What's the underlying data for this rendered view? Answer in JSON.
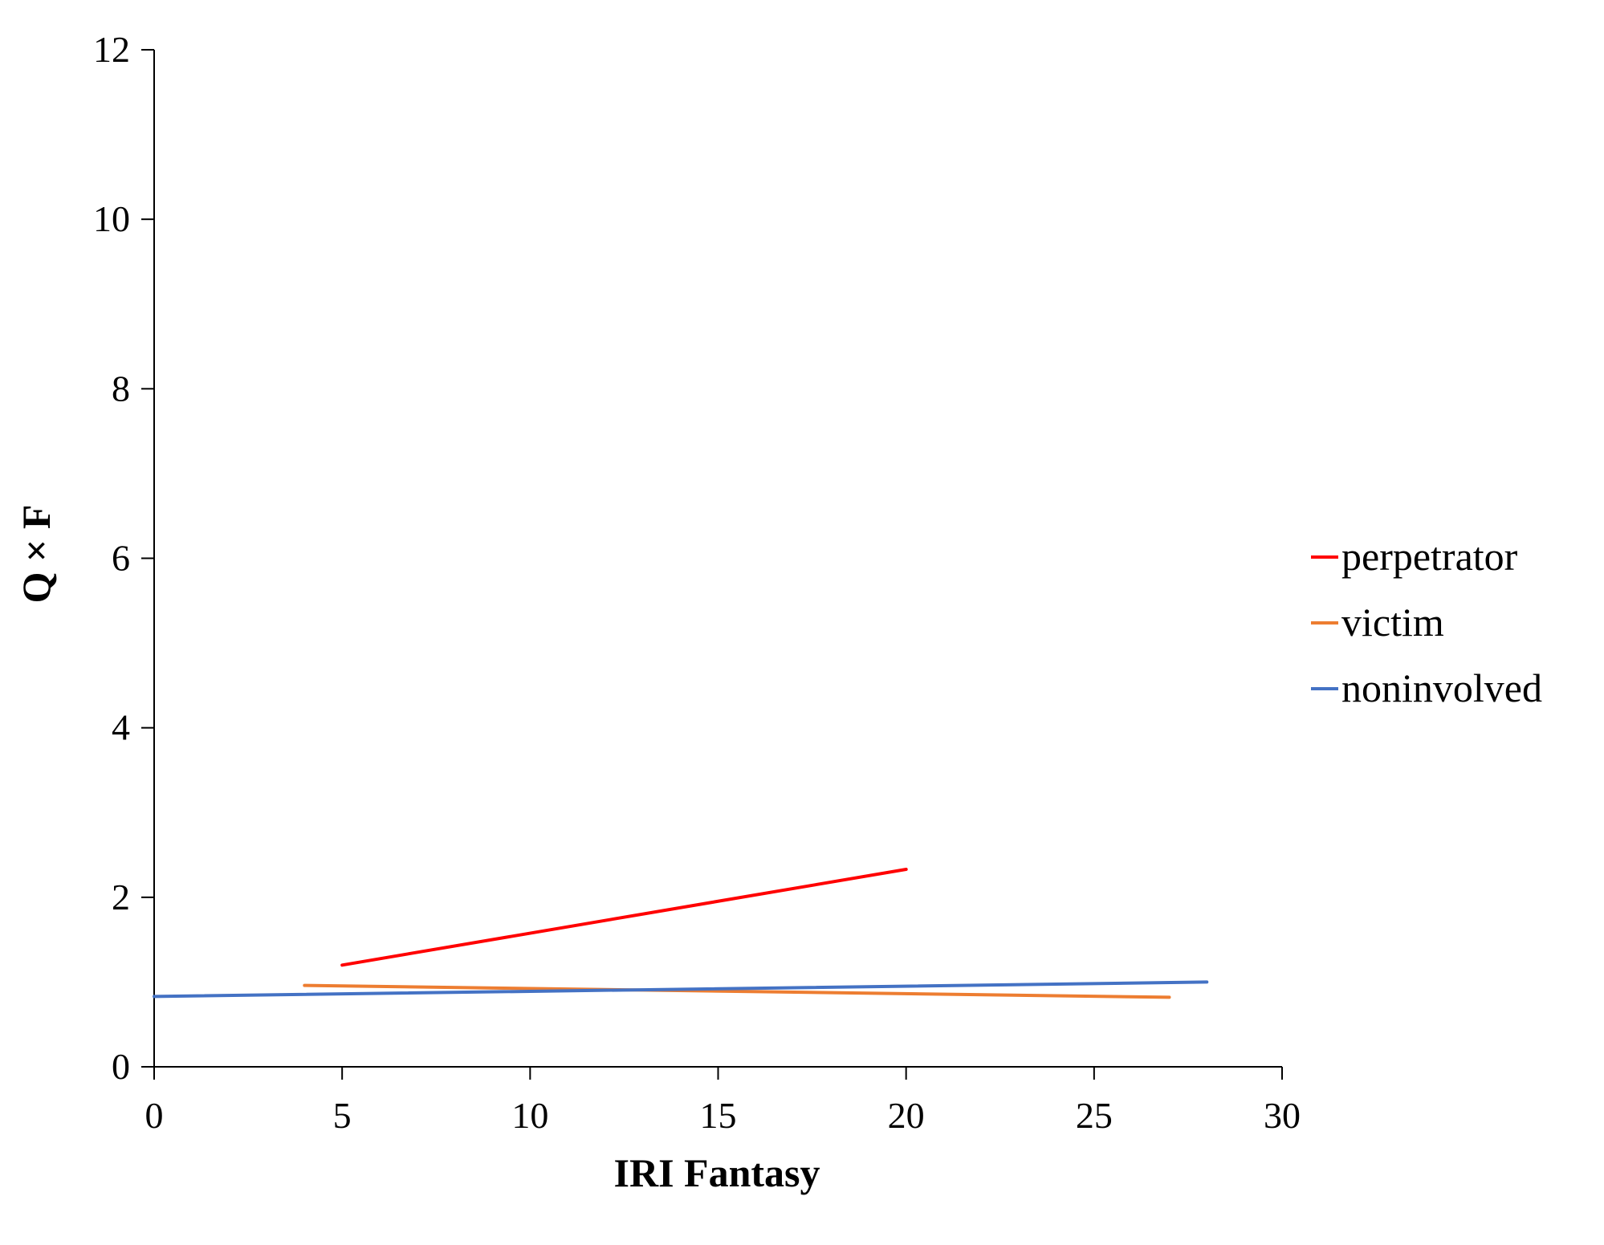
{
  "chart_data": {
    "type": "line",
    "title": "",
    "xlabel": "IRI Fantasy",
    "ylabel": "Q × F",
    "xlim": [
      0,
      30
    ],
    "ylim": [
      0,
      12
    ],
    "x_ticks": [
      0,
      5,
      10,
      15,
      20,
      25,
      30
    ],
    "y_ticks": [
      0,
      2,
      4,
      6,
      8,
      10,
      12
    ],
    "grid": false,
    "legend_position": "right",
    "series": [
      {
        "name": "perpetrator",
        "color": "#ff0000",
        "x": [
          5,
          20
        ],
        "y": [
          1.2,
          2.33
        ]
      },
      {
        "name": "victim",
        "color": "#ed7d31",
        "x": [
          4,
          27
        ],
        "y": [
          0.96,
          0.82
        ]
      },
      {
        "name": "noninvolved",
        "color": "#4472c4",
        "x": [
          0,
          28
        ],
        "y": [
          0.83,
          1.0
        ]
      }
    ]
  }
}
